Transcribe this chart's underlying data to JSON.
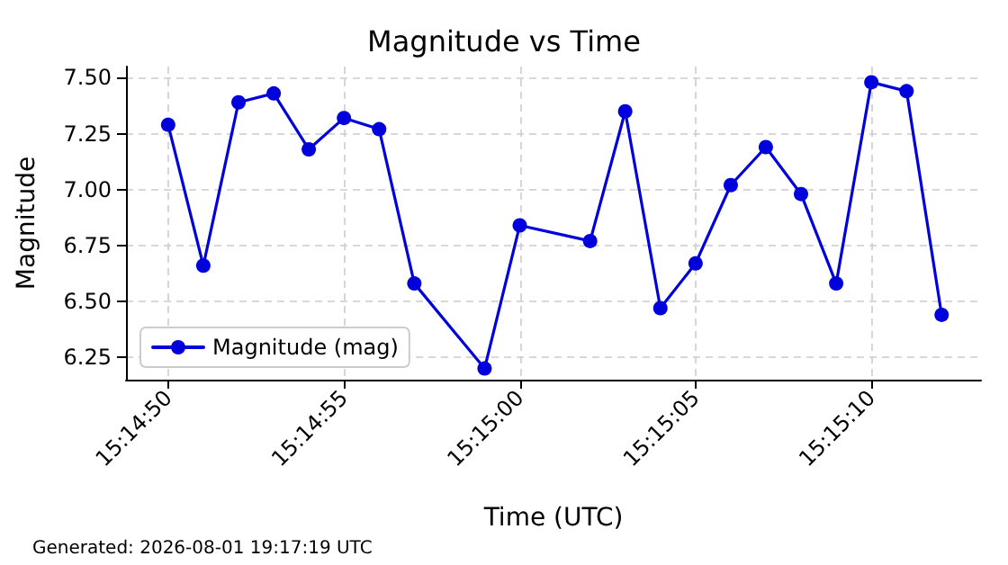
{
  "chart_data": {
    "type": "line",
    "title": "Magnitude vs Time",
    "xlabel": "Time (UTC)",
    "ylabel": "Magnitude",
    "annotations": [
      "Generated: 2026-08-01 19:17:19 UTC"
    ],
    "x": [
      15.247222,
      15.2475,
      15.247778,
      15.248056,
      15.248333,
      15.248611,
      15.248889,
      15.249167,
      15.249722,
      15.25,
      15.250556,
      15.250833,
      15.251111,
      15.251389,
      15.251667,
      15.251944,
      15.252222,
      15.2525,
      15.252778,
      15.253056,
      15.253333
    ],
    "series": [
      {
        "name": "Magnitude (mag)",
        "color": "#0000dd",
        "values": [
          7.29,
          6.66,
          7.39,
          7.43,
          7.18,
          7.32,
          7.27,
          6.58,
          6.2,
          6.84,
          6.77,
          7.35,
          6.47,
          6.67,
          7.02,
          7.19,
          6.98,
          6.58,
          7.48,
          7.44,
          6.44
        ]
      }
    ],
    "xlim": [
      15.246889,
      15.253644
    ],
    "xticks": [
      {
        "value": 15.247222,
        "label": "15:14:50"
      },
      {
        "value": 15.248611,
        "label": "15:14:55"
      },
      {
        "value": 15.25,
        "label": "15:15:00"
      },
      {
        "value": 15.251389,
        "label": "15:15:05"
      },
      {
        "value": 15.252778,
        "label": "15:15:10"
      }
    ],
    "ylim": [
      6.15,
      7.55
    ],
    "yticks": [
      {
        "value": 6.25,
        "label": "6.25"
      },
      {
        "value": 6.5,
        "label": "6.50"
      },
      {
        "value": 6.75,
        "label": "6.75"
      },
      {
        "value": 7.0,
        "label": "7.00"
      },
      {
        "value": 7.25,
        "label": "7.25"
      },
      {
        "value": 7.5,
        "label": "7.50"
      }
    ],
    "grid": true,
    "legend": "bottom left",
    "marker": "circle",
    "line_style": "solid"
  }
}
